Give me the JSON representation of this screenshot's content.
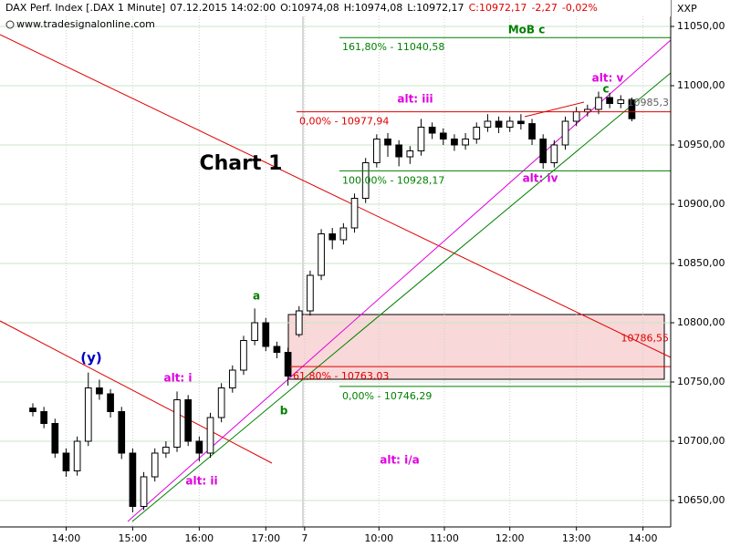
{
  "chart_data": {
    "type": "candlestick",
    "header": {
      "instrument": "DAX Perf. Index [.DAX  1 Minute]",
      "datetime": "07.12.2015 14:02:00",
      "open": "O:10974,08",
      "high": "H:10974,08",
      "low": "L:10972,17",
      "close": "C:10972,17",
      "change": "-2,27",
      "change_pct": "-0,02%"
    },
    "source": "www.tradesignalonline.com",
    "axis_title": "XXP",
    "title": "Chart 1",
    "open": [
      10728,
      10725,
      10715,
      10690,
      10675,
      10700,
      10745,
      10740,
      10725,
      10690,
      10645,
      10670,
      10690,
      10695,
      10735,
      10700,
      10690,
      10720,
      10745,
      10760,
      10785,
      10800,
      10780,
      10775,
      10790,
      10810,
      10840,
      10875,
      10870,
      10880,
      10905,
      10935,
      10955,
      10950,
      10940,
      10945,
      10965,
      10960,
      10955,
      10950,
      10955,
      10965,
      10970,
      10965,
      10970,
      10968,
      10955,
      10935,
      10950,
      10970,
      10978,
      10980,
      10990,
      10985,
      10988
    ],
    "high": [
      10732,
      10729,
      10719,
      10694,
      10704,
      10758,
      10752,
      10744,
      10729,
      10694,
      10674,
      10694,
      10700,
      10742,
      10739,
      10704,
      10724,
      10749,
      10764,
      10789,
      10812,
      10804,
      10784,
      10779,
      10814,
      10844,
      10879,
      10880,
      10884,
      10909,
      10939,
      10959,
      10960,
      10954,
      10949,
      10972,
      10969,
      10964,
      10959,
      10960,
      10969,
      10976,
      10974,
      10974,
      10976,
      10972,
      10959,
      10954,
      10974,
      10982,
      10984,
      10995,
      10994,
      10992,
      10990
    ],
    "low": [
      10721,
      10711,
      10686,
      10670,
      10671,
      10696,
      10735,
      10720,
      10685,
      10640,
      10642,
      10666,
      10686,
      10691,
      10696,
      10683,
      10686,
      10716,
      10741,
      10756,
      10781,
      10776,
      10770,
      10747,
      10788,
      10806,
      10836,
      10862,
      10866,
      10876,
      10901,
      10931,
      10940,
      10932,
      10934,
      10941,
      10955,
      10950,
      10945,
      10946,
      10951,
      10961,
      10960,
      10961,
      10963,
      10950,
      10930,
      10931,
      10946,
      10966,
      10974,
      10976,
      10981,
      10981,
      10970
    ],
    "close": [
      10725,
      10715,
      10690,
      10675,
      10700,
      10745,
      10740,
      10725,
      10690,
      10645,
      10670,
      10690,
      10695,
      10735,
      10700,
      10690,
      10720,
      10745,
      10760,
      10785,
      10800,
      10780,
      10775,
      10755,
      10810,
      10840,
      10875,
      10870,
      10880,
      10905,
      10935,
      10955,
      10950,
      10940,
      10945,
      10965,
      10960,
      10955,
      10950,
      10955,
      10965,
      10970,
      10965,
      10970,
      10968,
      10955,
      10935,
      10950,
      10970,
      10978,
      10980,
      10990,
      10985,
      10988,
      10972.17
    ],
    "up_color": "#ffffff",
    "down_color": "#000000",
    "outline_color": "#000000",
    "ylim": [
      10627.7,
      11072.3
    ],
    "yticks": [
      {
        "value": 10650,
        "label": "10650,00"
      },
      {
        "value": 10700,
        "label": "10700,00"
      },
      {
        "value": 10750,
        "label": "10750,00"
      },
      {
        "value": 10800,
        "label": "10800,00"
      },
      {
        "value": 10850,
        "label": "10850,00"
      },
      {
        "value": 10900,
        "label": "10900,00"
      },
      {
        "value": 10950,
        "label": "10950,00"
      },
      {
        "value": 11000,
        "label": "11000,00"
      },
      {
        "value": 11050,
        "label": "11050,00"
      }
    ],
    "xlim": [
      -2.96,
      57.5
    ],
    "xticks": [
      {
        "value": 3,
        "label": "14:00"
      },
      {
        "value": 9,
        "label": "15:00"
      },
      {
        "value": 15,
        "label": "16:00"
      },
      {
        "value": 21,
        "label": "17:00"
      },
      {
        "value": 24.5,
        "label": "7"
      },
      {
        "value": 31.2,
        "label": "10:00"
      },
      {
        "value": 37.1,
        "label": "11:00"
      },
      {
        "value": 43,
        "label": "12:00"
      },
      {
        "value": 49,
        "label": "13:00"
      },
      {
        "value": 55,
        "label": "14:00"
      }
    ],
    "grid": true,
    "levels": [
      {
        "label": "161,80% - 11040,58",
        "value": 11040.58,
        "color": "#008000"
      },
      {
        "label": "0,00% - 10977,94",
        "value": 10977.94,
        "color": "#e00000"
      },
      {
        "label": "100,00% - 10928,17",
        "value": 10928.17,
        "color": "#008000"
      },
      {
        "label": "61,80% - 10763,03",
        "value": 10763.03,
        "color": "#e00000"
      },
      {
        "label": "0,00% - 10746,29",
        "value": 10746.29,
        "color": "#008000"
      }
    ],
    "right_labels": [
      {
        "label": "10786,55",
        "value": 10786.55,
        "color": "#e00000"
      },
      {
        "label": "10985,3",
        "value": 10985.3,
        "color": "#606060"
      }
    ],
    "wave_labels": [
      "(y)",
      "alt: i",
      "alt: ii",
      "a",
      "b",
      "alt: iii",
      "alt: iv",
      "alt: v",
      "c",
      "MoB c",
      "alt: i/a"
    ]
  }
}
